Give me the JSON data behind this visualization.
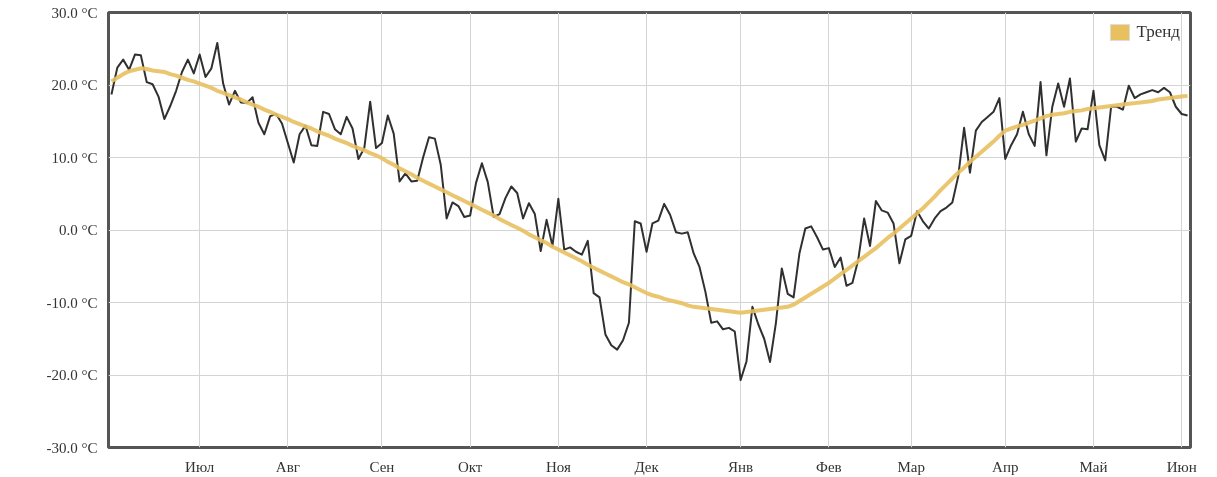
{
  "chart_data": {
    "type": "line",
    "categories": [
      null,
      null,
      null,
      null,
      null,
      null,
      null,
      null,
      null,
      null,
      null,
      null,
      null,
      null,
      null,
      "Июл",
      null,
      null,
      null,
      null,
      null,
      null,
      null,
      null,
      null,
      null,
      null,
      null,
      null,
      null,
      "Авг",
      null,
      null,
      null,
      null,
      null,
      null,
      null,
      null,
      null,
      null,
      null,
      null,
      null,
      null,
      null,
      "Сен",
      null,
      null,
      null,
      null,
      null,
      null,
      null,
      null,
      null,
      null,
      null,
      null,
      null,
      null,
      "Окт",
      null,
      null,
      null,
      null,
      null,
      null,
      null,
      null,
      null,
      null,
      null,
      null,
      null,
      null,
      "Ноя",
      null,
      null,
      null,
      null,
      null,
      null,
      null,
      null,
      null,
      null,
      null,
      null,
      null,
      null,
      "Дек",
      null,
      null,
      null,
      null,
      null,
      null,
      null,
      null,
      null,
      null,
      null,
      null,
      null,
      null,
      null,
      "Янв",
      null,
      null,
      null,
      null,
      null,
      null,
      null,
      null,
      null,
      null,
      null,
      null,
      null,
      null,
      "Фев",
      null,
      null,
      null,
      null,
      null,
      null,
      null,
      null,
      null,
      null,
      null,
      null,
      null,
      "Мар",
      null,
      null,
      null,
      null,
      null,
      null,
      null,
      null,
      null,
      null,
      null,
      null,
      null,
      null,
      null,
      "Апр",
      null,
      null,
      null,
      null,
      null,
      null,
      null,
      null,
      null,
      null,
      null,
      null,
      null,
      null,
      "Май",
      null,
      null,
      null,
      null,
      null,
      null,
      null,
      null,
      null,
      null,
      null,
      null,
      null,
      null,
      "Июн",
      null
    ],
    "ylim": [
      -30,
      30
    ],
    "yticks": [
      {
        "value": 30,
        "label": "30.0 °C"
      },
      {
        "value": 20,
        "label": "20.0 °C"
      },
      {
        "value": 10,
        "label": "10.0 °C"
      },
      {
        "value": 0,
        "label": "0.0 °C"
      },
      {
        "value": -10,
        "label": "-10.0 °C"
      },
      {
        "value": -20,
        "label": "-20.0 °C"
      },
      {
        "value": -30,
        "label": "-30.0 °C"
      }
    ],
    "grid": true,
    "legend": "top right",
    "line_style": "solid",
    "series": [
      {
        "color": "#1a1a1a",
        "values": [
          18.7,
          22.4,
          23.5,
          22.1,
          24.2,
          24.1,
          20.4,
          20.1,
          18.4,
          15.3,
          17.1,
          19.2,
          21.8,
          23.5,
          21.6,
          24.2,
          21.1,
          22.3,
          25.8,
          20.2,
          17.3,
          19.2,
          17.6,
          17.5,
          18.3,
          14.8,
          13.2,
          15.7,
          16,
          14.7,
          12,
          9.3,
          13.2,
          14.4,
          11.7,
          11.6,
          16.3,
          16,
          13.9,
          13.2,
          15.6,
          14,
          9.8,
          11.3,
          17.7,
          11.3,
          12,
          15.8,
          13.3,
          6.7,
          7.8,
          6.7,
          6.8,
          10,
          12.8,
          12.6,
          9,
          1.6,
          3.8,
          3.3,
          1.8,
          2,
          6.5,
          9.2,
          6.6,
          1.8,
          2.2,
          4.4,
          6,
          5.1,
          1.6,
          3.7,
          2.2,
          -2.9,
          1.4,
          -2.2,
          4.3,
          -2.7,
          -2.4,
          -3,
          -3.4,
          -1.5,
          -8.7,
          -9.3,
          -14.4,
          -15.9,
          -16.5,
          -15.2,
          -12.8,
          1.2,
          0.9,
          -3,
          0.9,
          1.3,
          3.6,
          2.1,
          -0.3,
          -0.5,
          -0.3,
          -3.2,
          -5.1,
          -8.5,
          -12.8,
          -12.6,
          -13.7,
          -13.5,
          -14,
          -20.7,
          -18.1,
          -10.6,
          -13,
          -15,
          -18.2,
          -12.8,
          -5.3,
          -8.8,
          -9.3,
          -3.2,
          0.2,
          0.5,
          -1,
          -2.7,
          -2.5,
          -5.1,
          -3.8,
          -7.7,
          -7.3,
          -4.1,
          1.6,
          -2.2,
          4,
          2.7,
          2.4,
          0.9,
          -4.6,
          -1.3,
          -0.8,
          2.6,
          1.2,
          0.2,
          1.6,
          2.6,
          3.1,
          3.8,
          7.4,
          14.1,
          7.9,
          13.7,
          14.9,
          15.6,
          16.3,
          18.2,
          9.8,
          11.7,
          13.2,
          16.3,
          13.2,
          11.6,
          20.4,
          10.3,
          17,
          20.2,
          17,
          20.9,
          12.2,
          14,
          13.9,
          19.2,
          11.7,
          9.6,
          17,
          17,
          16.6,
          19.9,
          18.2,
          18.7,
          19,
          19.3,
          19,
          19.6,
          19,
          17,
          16,
          15.8
        ]
      },
      {
        "name": "Тренд",
        "color": "#e8c060",
        "values": [
          20.5,
          21,
          21.5,
          21.9,
          22.1,
          22.3,
          22.2,
          22,
          21.9,
          21.8,
          21.5,
          21.3,
          21,
          20.7,
          20.5,
          20.2,
          19.9,
          19.6,
          19.2,
          18.9,
          18.6,
          18.3,
          18,
          17.6,
          17.3,
          17,
          16.6,
          16.3,
          15.9,
          15.6,
          15.3,
          14.9,
          14.6,
          14.3,
          14,
          13.6,
          13.3,
          13,
          12.6,
          12.3,
          12,
          11.6,
          11.3,
          11,
          10.6,
          10.3,
          9.9,
          9.4,
          9,
          8.5,
          8.1,
          7.7,
          7.2,
          6.8,
          6.4,
          6,
          5.6,
          5.2,
          4.8,
          4.4,
          4,
          3.6,
          3.2,
          2.8,
          2.4,
          2,
          1.5,
          1.1,
          0.7,
          0.3,
          -0.1,
          -0.6,
          -1,
          -1.4,
          -1.8,
          -2.3,
          -2.7,
          -3.1,
          -3.5,
          -3.9,
          -4.3,
          -4.8,
          -5.2,
          -5.6,
          -6,
          -6.4,
          -6.8,
          -7.2,
          -7.5,
          -7.9,
          -8.3,
          -8.7,
          -9,
          -9.2,
          -9.5,
          -9.7,
          -9.9,
          -10.1,
          -10.4,
          -10.6,
          -10.7,
          -10.8,
          -10.9,
          -11,
          -11.1,
          -11.2,
          -11.3,
          -11.4,
          -11.3,
          -11.2,
          -11.1,
          -11,
          -10.9,
          -10.8,
          -10.7,
          -10.6,
          -10.3,
          -9.8,
          -9.3,
          -8.8,
          -8.3,
          -7.8,
          -7.3,
          -6.7,
          -6.1,
          -5.5,
          -4.9,
          -4.3,
          -3.7,
          -3.1,
          -2.5,
          -1.8,
          -1.1,
          -0.5,
          0.2,
          0.9,
          1.6,
          2.3,
          3,
          3.8,
          4.6,
          5.5,
          6.3,
          7.1,
          7.9,
          8.6,
          9.4,
          10.1,
          10.8,
          11.5,
          12.2,
          13,
          13.7,
          14,
          14.3,
          14.5,
          14.8,
          15.1,
          15.4,
          15.7,
          15.9,
          16,
          16.1,
          16.3,
          16.4,
          16.5,
          16.7,
          16.8,
          16.9,
          17,
          17.1,
          17.2,
          17.3,
          17.4,
          17.5,
          17.6,
          17.7,
          17.8,
          18,
          18.1,
          18.2,
          18.3,
          18.4,
          18.5
        ]
      }
    ]
  }
}
